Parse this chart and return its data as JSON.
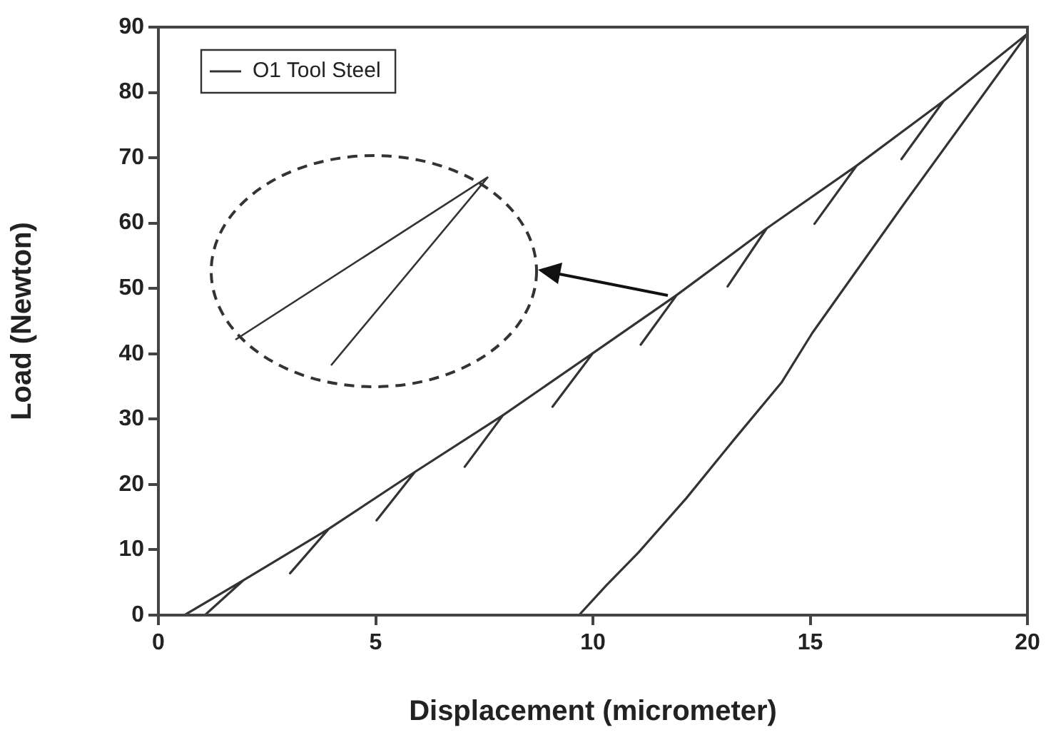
{
  "chart_data": {
    "type": "line",
    "xlabel": "Displacement (micrometer)",
    "ylabel": "Load (Newton)",
    "xlim": [
      0,
      20
    ],
    "ylim": [
      0,
      90
    ],
    "xticks": [
      0,
      5,
      10,
      15,
      20
    ],
    "yticks": [
      0,
      10,
      20,
      30,
      40,
      50,
      60,
      70,
      80,
      90
    ],
    "grid": false,
    "legend": "top left",
    "marker": "none",
    "line_style": "solid",
    "series": [
      {
        "name": "O1 Tool Steel",
        "color": "#333333",
        "x": [
          0,
          0.6,
          1.95,
          1.07,
          1.95,
          3.92,
          3.03,
          3.92,
          5.9,
          5.02,
          5.9,
          7.93,
          7.05,
          7.93,
          10.0,
          9.07,
          10.0,
          11.93,
          11.1,
          11.93,
          14.0,
          13.1,
          14.0,
          16.07,
          15.1,
          16.07,
          18.07,
          17.1,
          18.07,
          20,
          17.1,
          15.05,
          14.34,
          13.24,
          12.15,
          11.05,
          10.3,
          9.68,
          5.68
        ],
        "values": [
          0,
          0,
          5.3,
          0,
          5.3,
          13.2,
          6.4,
          13.2,
          21.9,
          14.5,
          21.9,
          30.6,
          22.7,
          30.6,
          40.1,
          31.9,
          40.1,
          49,
          41.4,
          49,
          59.2,
          50.3,
          59.2,
          68.8,
          59.9,
          68.8,
          78.7,
          69.8,
          78.7,
          89,
          62.4,
          43.2,
          35.6,
          26.8,
          17.9,
          9.6,
          4.5,
          0,
          0
        ]
      }
    ]
  }
}
